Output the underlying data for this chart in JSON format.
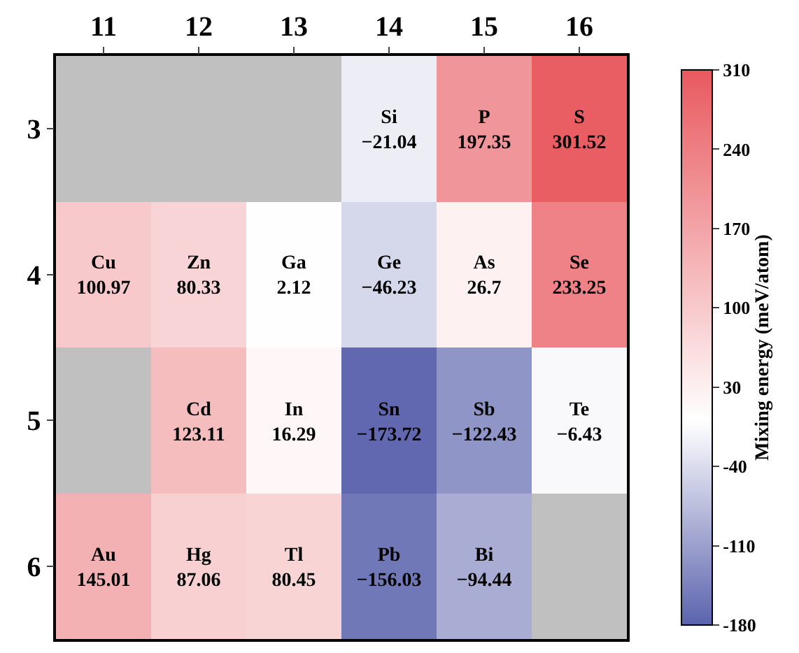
{
  "chart_data": {
    "type": "heatmap",
    "clabel": "Mixing energy (meV/atom)",
    "categories": [
      "11",
      "12",
      "13",
      "14",
      "15",
      "16"
    ],
    "y_categories": [
      "3",
      "4",
      "5",
      "6"
    ],
    "cells": [
      [
        null,
        null,
        null,
        -21.04,
        197.35,
        301.52
      ],
      [
        100.97,
        80.33,
        2.12,
        -46.23,
        26.7,
        233.25
      ],
      [
        null,
        123.11,
        16.29,
        -173.72,
        -122.43,
        -6.43
      ],
      [
        145.01,
        87.06,
        80.45,
        -156.03,
        -94.44,
        null
      ]
    ],
    "cell_labels": [
      [
        null,
        null,
        null,
        "Si\n−21.04",
        "P\n197.35",
        "S\n301.52"
      ],
      [
        "Cu\n100.97",
        "Zn\n80.33",
        "Ga\n2.12",
        "Ge\n−46.23",
        "As\n26.7",
        "Se\n233.25"
      ],
      [
        null,
        "Cd\n123.11",
        "In\n16.29",
        "Sn\n−173.72",
        "Sb\n−122.43",
        "Te\n−6.43"
      ],
      [
        "Au\n145.01",
        "Hg\n87.06",
        "Tl\n80.45",
        "Pb\n−156.03",
        "Bi\n−94.44",
        null
      ]
    ],
    "clim": [
      -180,
      310
    ],
    "cticks": [
      -180,
      -110,
      -40,
      30,
      100,
      170,
      240,
      310
    ]
  }
}
